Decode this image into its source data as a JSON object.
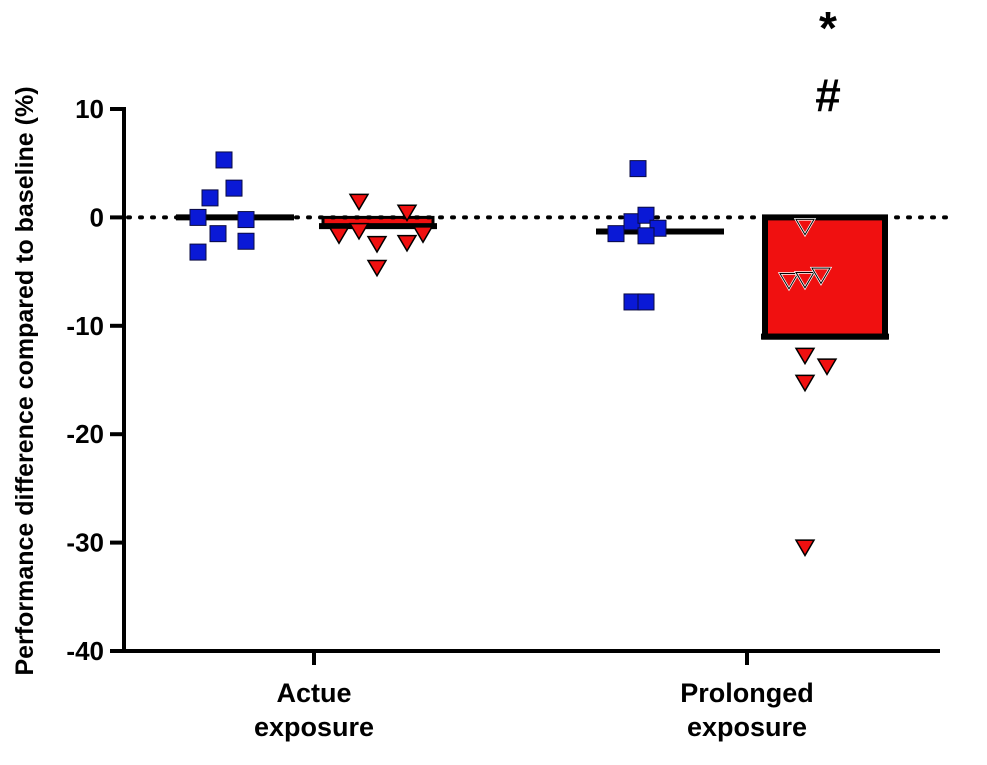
{
  "chart_data": {
    "type": "scatter",
    "ylabel": "Performance difference compared to baseline (%)",
    "ylim": [
      -40,
      10
    ],
    "yticks": [
      10,
      0,
      -10,
      -20,
      -30,
      -40
    ],
    "baseline": 0,
    "categories": [
      "Actue exposure",
      "Prolonged exposure"
    ],
    "category_lines": [
      [
        "Actue",
        "exposure"
      ],
      [
        "Prolonged",
        "exposure"
      ]
    ],
    "colors": {
      "blue": "#0a19d6",
      "red": "#f01010",
      "axis": "#000000"
    },
    "series": [
      {
        "category": 0,
        "marker": "square",
        "color": "#0a19d6",
        "mean": 0,
        "bar": false,
        "points": [
          {
            "x": 0.6,
            "y": 5.3
          },
          {
            "x": 0.25,
            "y": 1.8
          },
          {
            "x": 0.85,
            "y": 2.7
          },
          {
            "x": -0.05,
            "y": 0
          },
          {
            "x": 1.15,
            "y": -0.2
          },
          {
            "x": 0.45,
            "y": -1.5
          },
          {
            "x": 1.15,
            "y": -2.2
          },
          {
            "x": -0.05,
            "y": -3.2
          }
        ]
      },
      {
        "category": 0,
        "marker": "triangle-down",
        "color": "#f01010",
        "mean": -0.8,
        "bar": true,
        "points": [
          {
            "x": 0.4,
            "y": 1.5
          },
          {
            "x": 1.6,
            "y": 0.5
          },
          {
            "x": -0.1,
            "y": -1.6
          },
          {
            "x": 0.4,
            "y": -1.2
          },
          {
            "x": 2.0,
            "y": -1.5
          },
          {
            "x": 0.85,
            "y": -2.4
          },
          {
            "x": 1.6,
            "y": -2.3
          },
          {
            "x": 0.85,
            "y": -4.6
          }
        ]
      },
      {
        "category": 1,
        "marker": "square",
        "color": "#0a19d6",
        "mean": -1.3,
        "bar": false,
        "points": [
          {
            "x": 0.45,
            "y": 4.5
          },
          {
            "x": 0.3,
            "y": -0.4
          },
          {
            "x": 0.65,
            "y": 0.2
          },
          {
            "x": -0.1,
            "y": -1.5
          },
          {
            "x": 0.95,
            "y": -1.0
          },
          {
            "x": 0.65,
            "y": -1.7
          },
          {
            "x": 0.3,
            "y": -7.8
          },
          {
            "x": 0.65,
            "y": -7.8
          }
        ]
      },
      {
        "category": 1,
        "marker": "triangle-down",
        "color": "#f01010",
        "mean": -11,
        "bar": true,
        "points": [
          {
            "x": 0.5,
            "y": -0.8,
            "hollow": true
          },
          {
            "x": 0.1,
            "y": -5.8,
            "hollow": true
          },
          {
            "x": 0.5,
            "y": -5.7,
            "hollow": true
          },
          {
            "x": 0.9,
            "y": -5.3,
            "hollow": true
          },
          {
            "x": 0.5,
            "y": -12.7
          },
          {
            "x": 1.05,
            "y": -13.7
          },
          {
            "x": 0.5,
            "y": -15.2
          },
          {
            "x": 0.5,
            "y": -30.4
          }
        ]
      }
    ],
    "annotations": [
      "*",
      "#"
    ]
  }
}
